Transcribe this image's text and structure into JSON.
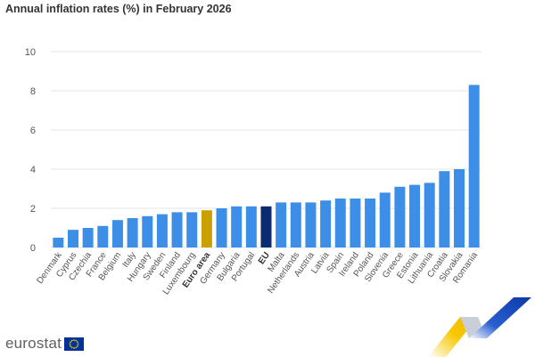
{
  "page": {
    "title": "Annual inflation rates (%) in February 2026",
    "brand": "eurostat"
  },
  "colors": {
    "default": "#3c8ee6",
    "euro_area": "#c9a000",
    "eu": "#0a2a72",
    "grid": "#e6e6e6",
    "axis_text": "#555555",
    "title": "#333333"
  },
  "chart_data": {
    "type": "bar",
    "title": "Annual inflation rates (%) in February 2026",
    "xlabel": "",
    "ylabel": "",
    "ylim": [
      0,
      10
    ],
    "yticks": [
      0,
      2,
      4,
      6,
      8,
      10
    ],
    "grid": true,
    "categories": [
      "Denmark",
      "Cyprus",
      "Czechia",
      "France",
      "Belgium",
      "Italy",
      "Hungary",
      "Sweden",
      "Finland",
      "Luxembourg",
      "Euro area",
      "Germany",
      "Bulgaria",
      "Portugal",
      "EU",
      "Malta",
      "Netherlands",
      "Austria",
      "Latvia",
      "Spain",
      "Ireland",
      "Poland",
      "Slovenia",
      "Greece",
      "Estonia",
      "Lithuania",
      "Croatia",
      "Slovakia",
      "Romania"
    ],
    "values": [
      0.5,
      0.9,
      1.0,
      1.1,
      1.4,
      1.5,
      1.6,
      1.7,
      1.8,
      1.8,
      1.9,
      2.0,
      2.1,
      2.1,
      2.1,
      2.3,
      2.3,
      2.3,
      2.4,
      2.5,
      2.5,
      2.5,
      2.8,
      3.1,
      3.2,
      3.3,
      3.9,
      4.0,
      8.3
    ],
    "highlight": {
      "Euro area": "euro_area",
      "EU": "eu"
    },
    "bold_labels": [
      "Euro area",
      "EU"
    ]
  }
}
